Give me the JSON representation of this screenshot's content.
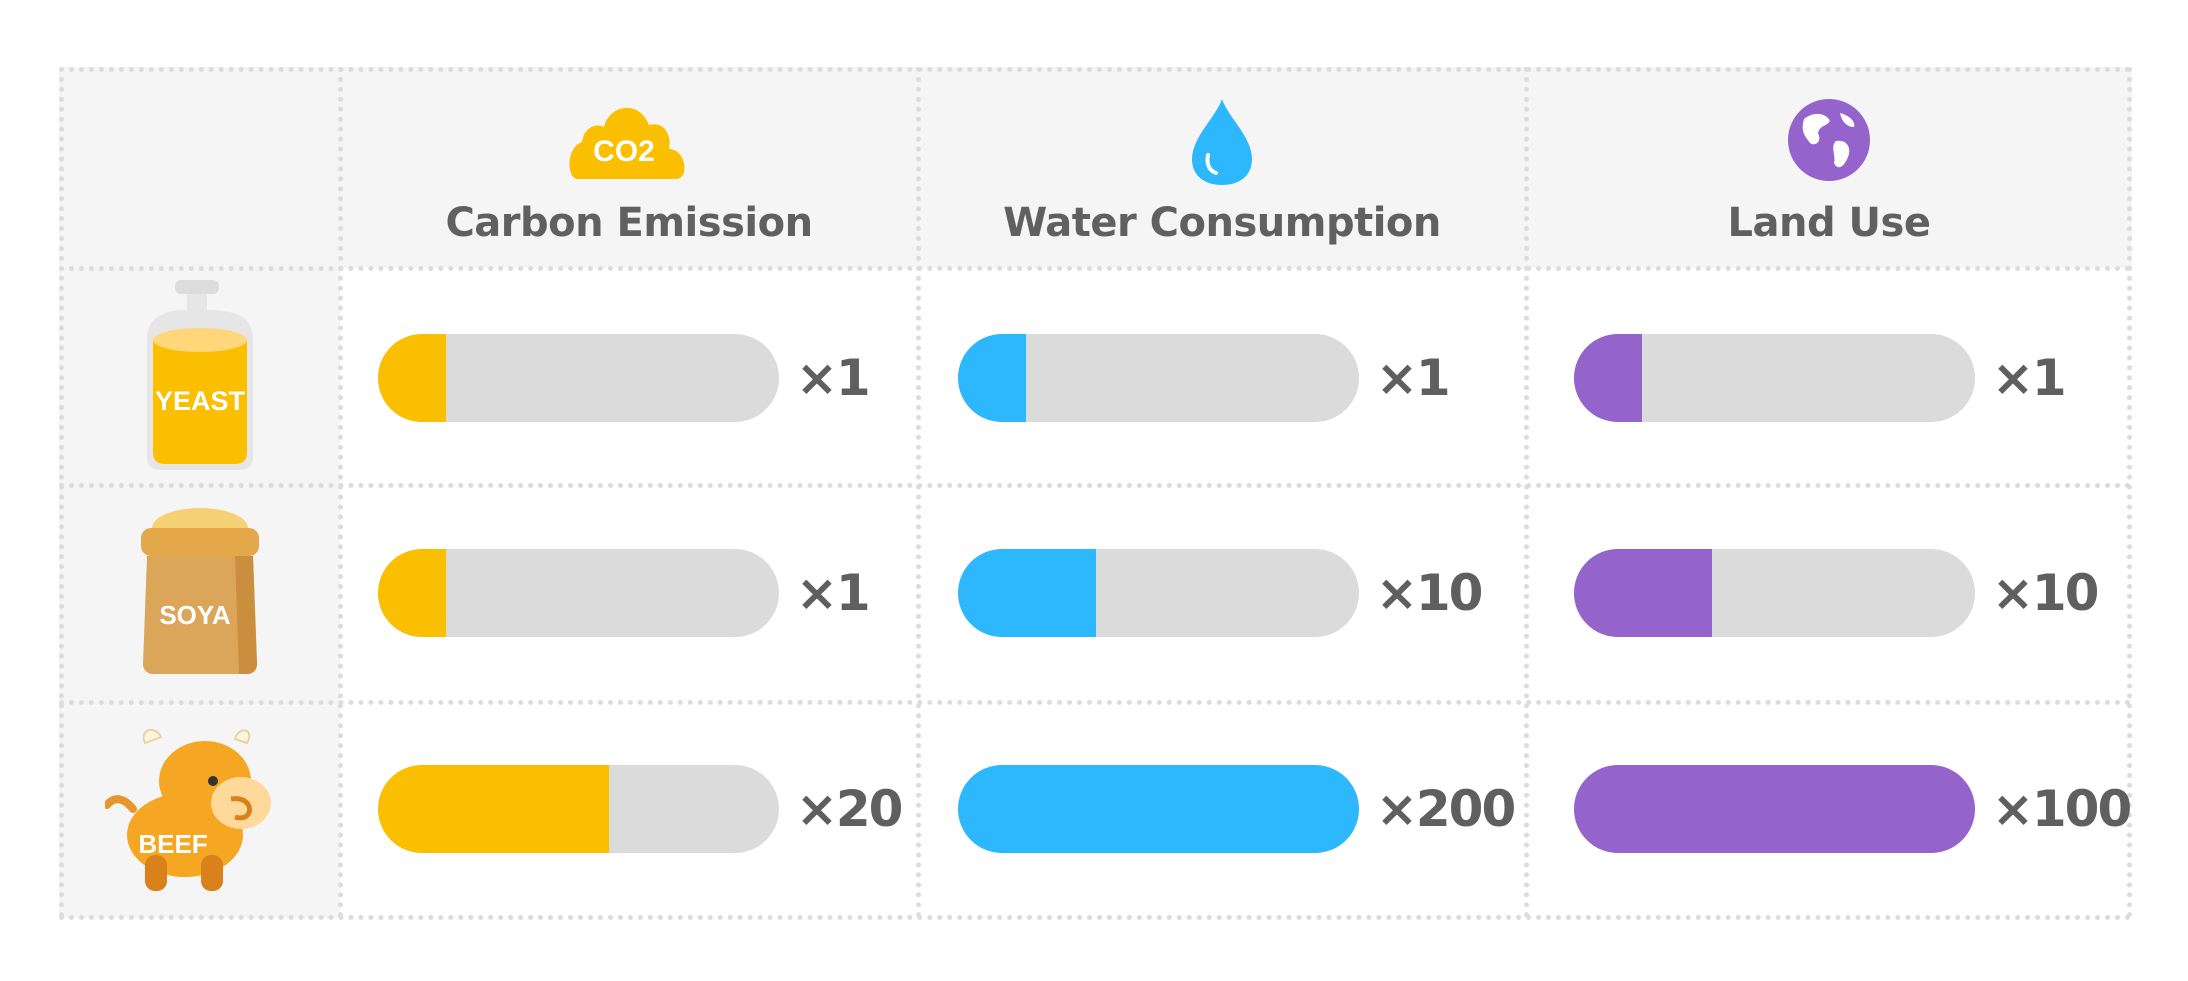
{
  "colors": {
    "carbon": "#f9bf00",
    "water": "#2db8fd",
    "land": "#9463cb",
    "track": "#dbdbdb",
    "text": "#606060",
    "header_bg": "#f5f5f5"
  },
  "columns": [
    {
      "title": "Carbon Emission",
      "icon": "co2-cloud-icon",
      "icon_text": "CO2"
    },
    {
      "title": "Water Consumption",
      "icon": "water-drop-icon"
    },
    {
      "title": "Land Use",
      "icon": "globe-icon"
    }
  ],
  "rows": [
    {
      "label": "YEAST",
      "icon": "yeast-bottle-icon",
      "values": [
        {
          "mult": "×1",
          "fill": 0.17
        },
        {
          "mult": "×1",
          "fill": 0.17
        },
        {
          "mult": "×1",
          "fill": 0.17
        }
      ]
    },
    {
      "label": "SOYA",
      "icon": "soya-sack-icon",
      "values": [
        {
          "mult": "×1",
          "fill": 0.17
        },
        {
          "mult": "×10",
          "fill": 0.345
        },
        {
          "mult": "×10",
          "fill": 0.345
        }
      ]
    },
    {
      "label": "BEEF",
      "icon": "cow-icon",
      "values": [
        {
          "mult": "×20",
          "fill": 0.575
        },
        {
          "mult": "×200",
          "fill": 1.0
        },
        {
          "mult": "×100",
          "fill": 1.0
        }
      ]
    }
  ]
}
